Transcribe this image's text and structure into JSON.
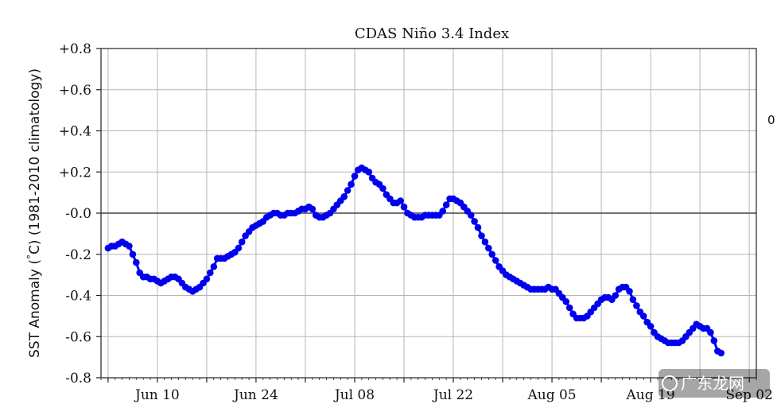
{
  "chart_data": {
    "type": "line",
    "title": "CDAS Niño 3.4 Index",
    "ylabel": "SST Anomaly (°C) (1981-2010 climatology)",
    "ylabel_parts": [
      "SST Anomaly (",
      "°",
      "C) (1981-2010 climatology)"
    ],
    "xlabel": "",
    "ylim": [
      -0.8,
      0.8
    ],
    "xlim": [
      "2019-06-02",
      "2019-09-03"
    ],
    "yticks": [
      0.8,
      0.6,
      0.4,
      0.2,
      0.0,
      -0.2,
      -0.4,
      -0.6,
      -0.8
    ],
    "ytick_labels": [
      "+0.8",
      "+0.6",
      "+0.4",
      "+0.2",
      "-0.0",
      "-0.2",
      "-0.4",
      "-0.6",
      "-0.8"
    ],
    "xticks": [
      "2019-06-10",
      "2019-06-24",
      "2019-07-08",
      "2019-07-22",
      "2019-08-05",
      "2019-08-19",
      "2019-09-02"
    ],
    "xtick_labels": [
      "Jun 10",
      "Jun 24",
      "Jul 08",
      "Jul 22",
      "Aug 05",
      "Aug 19",
      "Sep 02"
    ],
    "grid": true,
    "zero_line": true,
    "series_color": "#0000ee",
    "zero_line_color": "#444444",
    "side_label": "0",
    "watermark": "广东龙网",
    "series": [
      {
        "start": "2019-06-03",
        "step_days": 0.5,
        "values": [
          -0.17,
          -0.16,
          -0.16,
          -0.15,
          -0.14,
          -0.15,
          -0.16,
          -0.2,
          -0.24,
          -0.29,
          -0.31,
          -0.31,
          -0.32,
          -0.32,
          -0.33,
          -0.34,
          -0.33,
          -0.32,
          -0.31,
          -0.31,
          -0.32,
          -0.34,
          -0.36,
          -0.37,
          -0.38,
          -0.37,
          -0.36,
          -0.34,
          -0.32,
          -0.29,
          -0.26,
          -0.22,
          -0.22,
          -0.22,
          -0.21,
          -0.2,
          -0.19,
          -0.17,
          -0.14,
          -0.11,
          -0.09,
          -0.07,
          -0.06,
          -0.05,
          -0.04,
          -0.02,
          -0.01,
          0.0,
          0.0,
          -0.01,
          -0.01,
          0.0,
          0.0,
          0.0,
          0.01,
          0.02,
          0.02,
          0.03,
          0.02,
          -0.01,
          -0.02,
          -0.02,
          -0.01,
          0.0,
          0.02,
          0.04,
          0.06,
          0.08,
          0.11,
          0.14,
          0.18,
          0.21,
          0.22,
          0.21,
          0.2,
          0.17,
          0.15,
          0.14,
          0.12,
          0.09,
          0.07,
          0.05,
          0.05,
          0.06,
          0.03,
          0.0,
          -0.01,
          -0.02,
          -0.02,
          -0.02,
          -0.01,
          -0.01,
          -0.01,
          -0.01,
          -0.01,
          0.01,
          0.04,
          0.07,
          0.07,
          0.06,
          0.05,
          0.03,
          0.01,
          -0.01,
          -0.04,
          -0.07,
          -0.11,
          -0.14,
          -0.17,
          -0.2,
          -0.23,
          -0.26,
          -0.28,
          -0.3,
          -0.31,
          -0.32,
          -0.33,
          -0.34,
          -0.35,
          -0.36,
          -0.37,
          -0.37,
          -0.37,
          -0.37,
          -0.37,
          -0.36,
          -0.37,
          -0.37,
          -0.39,
          -0.41,
          -0.43,
          -0.46,
          -0.49,
          -0.51,
          -0.51,
          -0.51,
          -0.5,
          -0.48,
          -0.46,
          -0.44,
          -0.42,
          -0.41,
          -0.41,
          -0.42,
          -0.4,
          -0.37,
          -0.36,
          -0.36,
          -0.38,
          -0.42,
          -0.45,
          -0.48,
          -0.5,
          -0.53,
          -0.55,
          -0.58,
          -0.6,
          -0.61,
          -0.62,
          -0.63,
          -0.63,
          -0.63,
          -0.63,
          -0.62,
          -0.6,
          -0.58,
          -0.56,
          -0.54,
          -0.55,
          -0.56,
          -0.56,
          -0.58,
          -0.62,
          -0.67,
          -0.68
        ]
      }
    ]
  }
}
